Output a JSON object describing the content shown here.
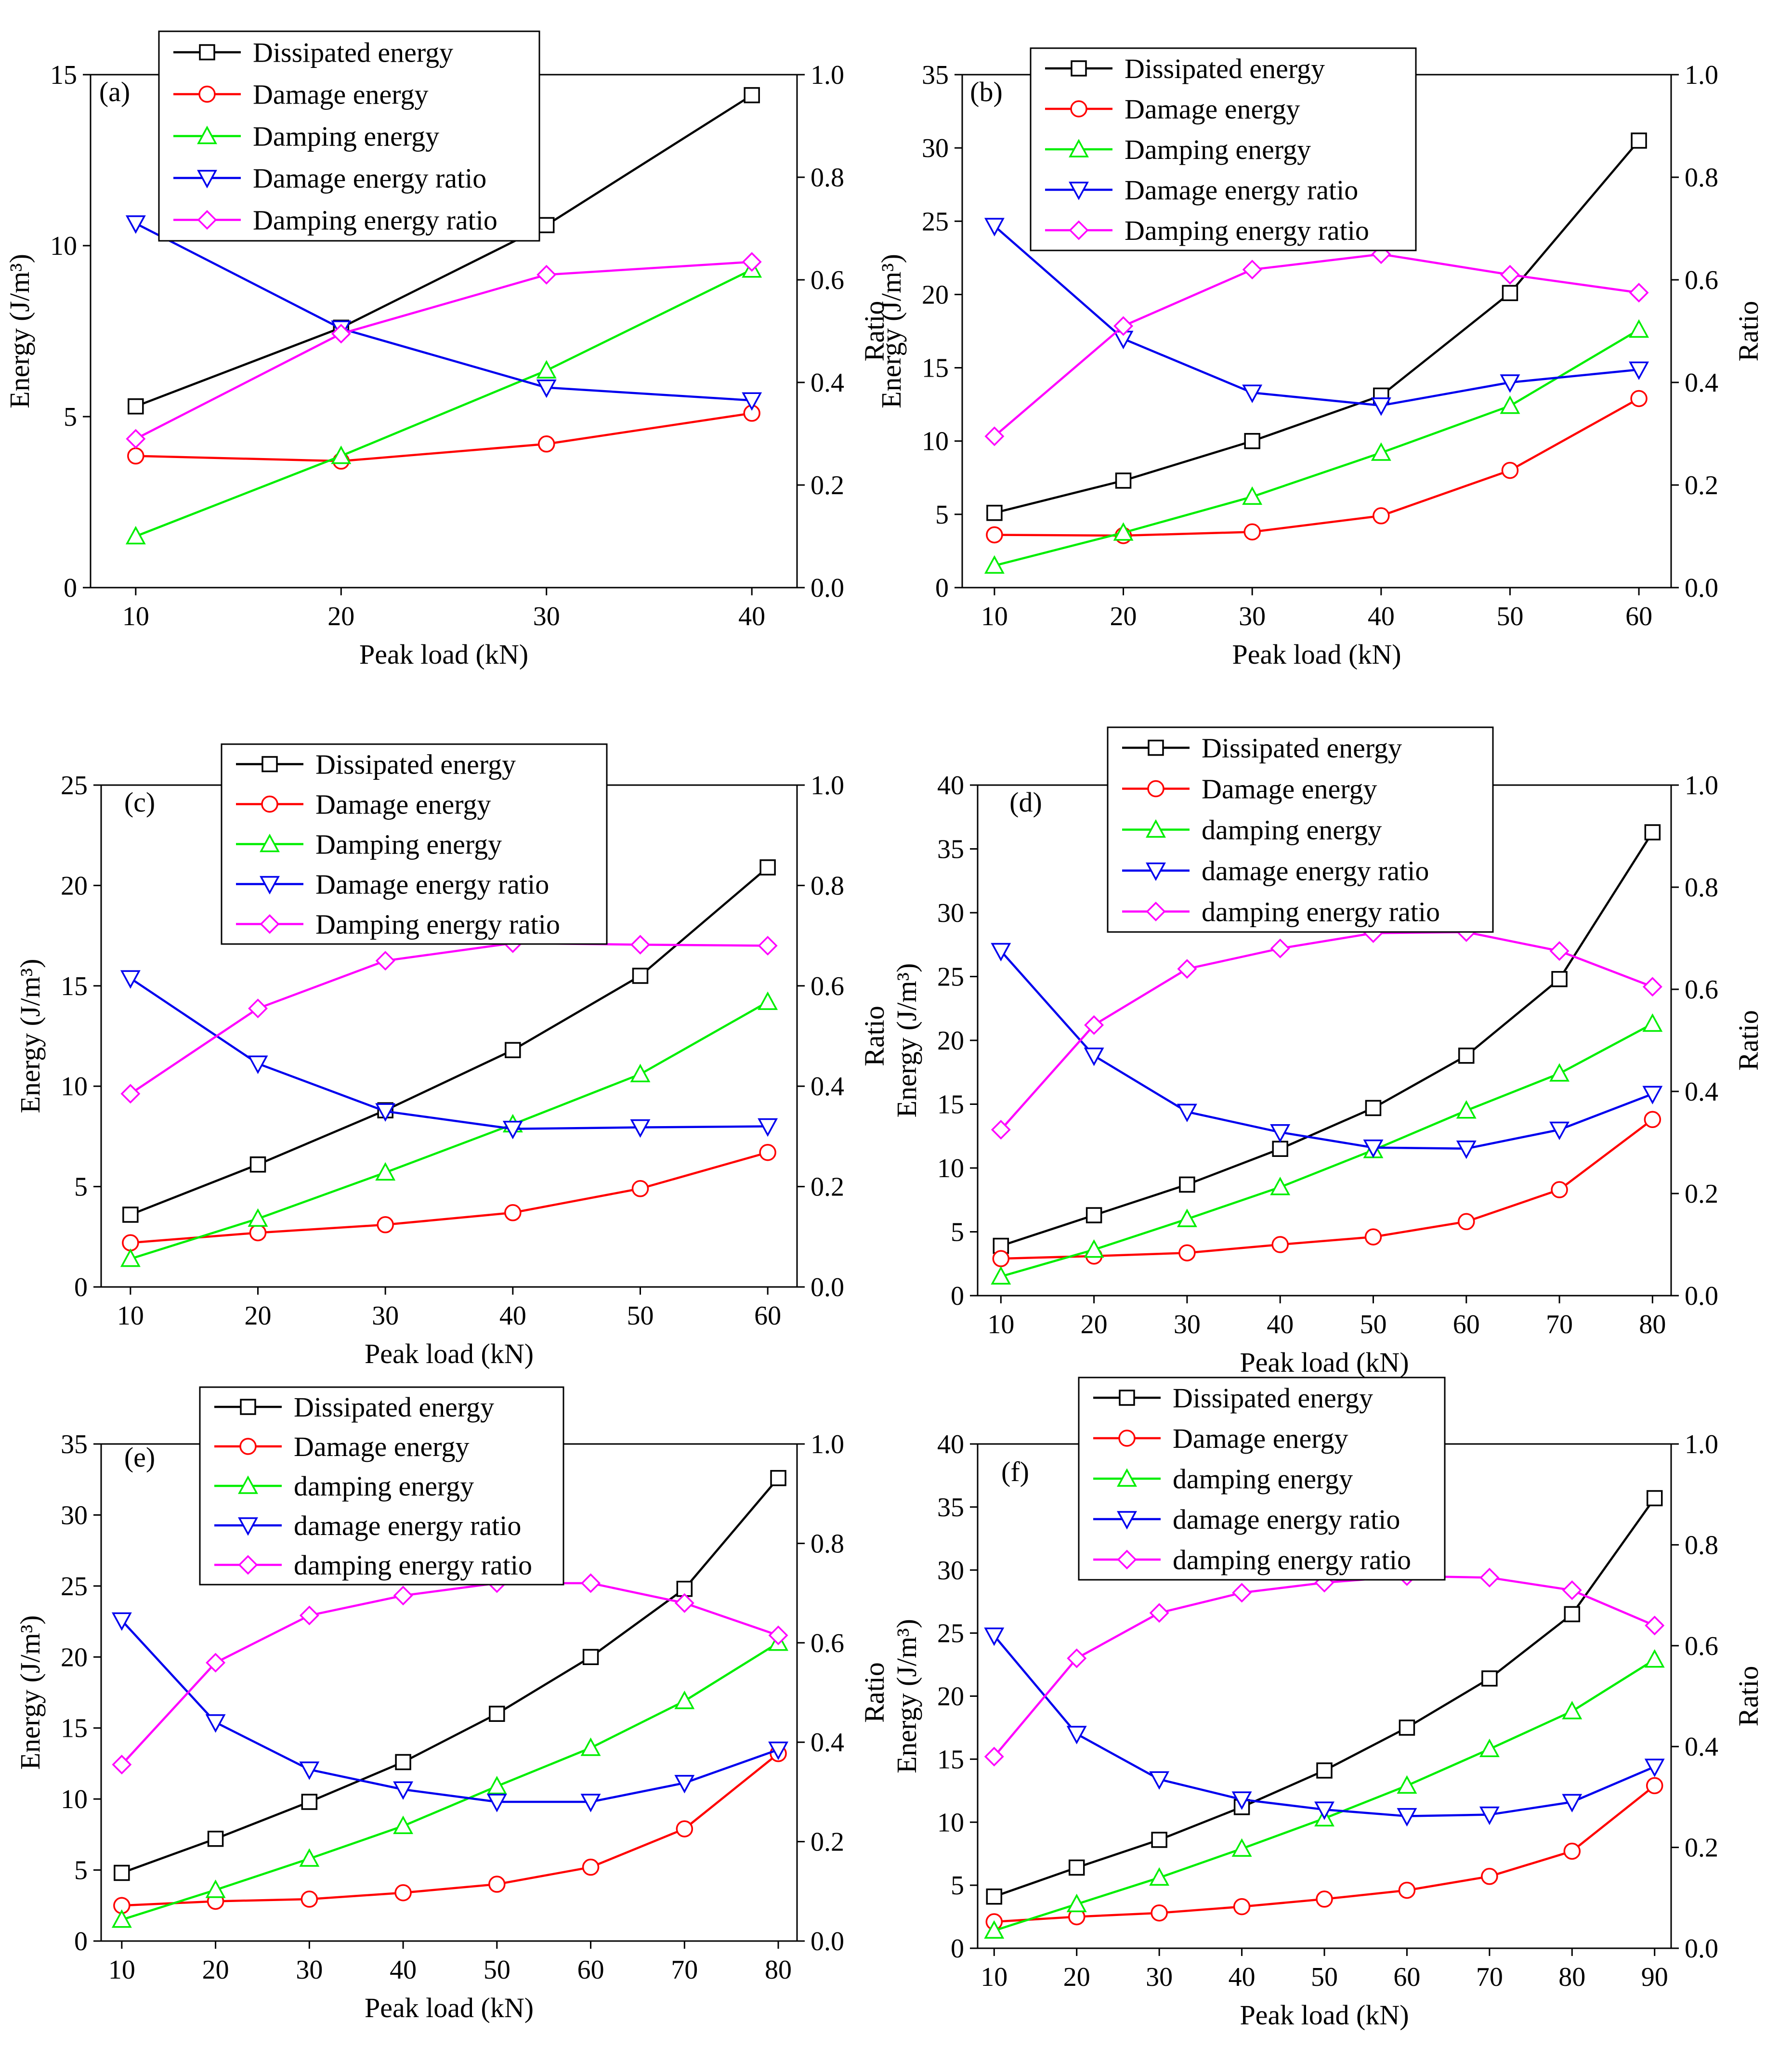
{
  "figure": {
    "description_label": "Six-panel dual-axis line chart figure"
  },
  "colors": {
    "dissipated": "#000000",
    "damage": "#ff0000",
    "damping": "#00ee00",
    "damage_ratio": "#0000ee",
    "damping_ratio": "#ff00ff"
  },
  "chart_data": [
    {
      "type": "line",
      "panel_label": "(a)",
      "xlabel": "Peak load (kN)",
      "ylabel": "Energy (J/m³)",
      "y2label": "Ratio",
      "x": [
        10,
        20,
        30,
        40
      ],
      "xticks": [
        10,
        20,
        30,
        40
      ],
      "xlim": [
        7.8,
        42.2
      ],
      "ylim": [
        0,
        15
      ],
      "yticks": [
        0,
        5,
        10,
        15
      ],
      "y2lim": [
        0,
        1.0
      ],
      "y2ticks": [
        "0.0",
        "0.2",
        "0.4",
        "0.6",
        "0.8",
        "1.0"
      ],
      "legend_position": "top-center",
      "series": [
        {
          "name": "Dissipated energy",
          "axis": "left",
          "marker": "square",
          "color_key": "dissipated",
          "values": [
            5.3,
            7.6,
            10.6,
            14.4
          ]
        },
        {
          "name": "Damage energy",
          "axis": "left",
          "marker": "circle",
          "color_key": "damage",
          "values": [
            3.85,
            3.7,
            4.2,
            5.1
          ]
        },
        {
          "name": "Damping energy",
          "axis": "left",
          "marker": "triangle-up",
          "color_key": "damping",
          "values": [
            1.5,
            3.85,
            6.35,
            9.3
          ]
        },
        {
          "name": "Damage energy ratio",
          "axis": "right",
          "marker": "triangle-down",
          "color_key": "damage_ratio",
          "values": [
            0.71,
            0.505,
            0.39,
            0.365
          ]
        },
        {
          "name": "Damping energy ratio",
          "axis": "right",
          "marker": "diamond",
          "color_key": "damping_ratio",
          "values": [
            0.29,
            0.495,
            0.61,
            0.635
          ]
        }
      ]
    },
    {
      "type": "line",
      "panel_label": "(b)",
      "xlabel": "Peak load (kN)",
      "ylabel": "Energy (J/m³)",
      "y2label": "Ratio",
      "x": [
        10,
        20,
        30,
        40,
        50,
        60
      ],
      "xticks": [
        10,
        20,
        30,
        40,
        50,
        60
      ],
      "xlim": [
        7.5,
        62.5
      ],
      "ylim": [
        0,
        35
      ],
      "yticks": [
        0,
        5,
        10,
        15,
        20,
        25,
        30,
        35
      ],
      "y2lim": [
        0,
        1.0
      ],
      "y2ticks": [
        "0.0",
        "0.2",
        "0.4",
        "0.6",
        "0.8",
        "1.0"
      ],
      "legend_position": "top-center",
      "series": [
        {
          "name": "Dissipated energy",
          "axis": "left",
          "marker": "square",
          "color_key": "dissipated",
          "values": [
            5.1,
            7.3,
            10.0,
            13.1,
            20.1,
            30.5
          ]
        },
        {
          "name": "Damage energy",
          "axis": "left",
          "marker": "circle",
          "color_key": "damage",
          "values": [
            3.6,
            3.55,
            3.8,
            4.9,
            8.0,
            12.9
          ]
        },
        {
          "name": "Damping energy",
          "axis": "left",
          "marker": "triangle-up",
          "color_key": "damping",
          "values": [
            1.5,
            3.75,
            6.2,
            9.2,
            12.4,
            17.6
          ]
        },
        {
          "name": "Damage energy ratio",
          "axis": "right",
          "marker": "triangle-down",
          "color_key": "damage_ratio",
          "values": [
            0.705,
            0.485,
            0.38,
            0.355,
            0.4,
            0.425
          ]
        },
        {
          "name": "Damping energy ratio",
          "axis": "right",
          "marker": "diamond",
          "color_key": "damping_ratio",
          "values": [
            0.295,
            0.51,
            0.62,
            0.65,
            0.61,
            0.575
          ]
        }
      ]
    },
    {
      "type": "line",
      "panel_label": "(c)",
      "xlabel": "Peak load (kN)",
      "ylabel": "Energy (J/m³)",
      "y2label": "Ratio",
      "x": [
        10,
        20,
        30,
        40,
        50,
        60
      ],
      "xticks": [
        10,
        20,
        30,
        40,
        50,
        60
      ],
      "xlim": [
        7.7,
        62.3
      ],
      "ylim": [
        0,
        25
      ],
      "yticks": [
        0,
        5,
        10,
        15,
        20,
        25
      ],
      "y2lim": [
        0,
        1.0
      ],
      "y2ticks": [
        "0.0",
        "0.2",
        "0.4",
        "0.6",
        "0.8",
        "1.0"
      ],
      "legend_position": "top-center",
      "series": [
        {
          "name": "Dissipated energy",
          "axis": "left",
          "marker": "square",
          "color_key": "dissipated",
          "values": [
            3.6,
            6.1,
            8.8,
            11.8,
            15.5,
            20.9
          ]
        },
        {
          "name": "Damage energy",
          "axis": "left",
          "marker": "circle",
          "color_key": "damage",
          "values": [
            2.2,
            2.7,
            3.1,
            3.7,
            4.9,
            6.7
          ]
        },
        {
          "name": "Damping energy",
          "axis": "left",
          "marker": "triangle-up",
          "color_key": "damping",
          "values": [
            1.4,
            3.4,
            5.7,
            8.1,
            10.6,
            14.2
          ]
        },
        {
          "name": "Damage energy ratio",
          "axis": "right",
          "marker": "triangle-down",
          "color_key": "damage_ratio",
          "values": [
            0.615,
            0.445,
            0.35,
            0.315,
            0.318,
            0.32
          ]
        },
        {
          "name": "Damping energy ratio",
          "axis": "right",
          "marker": "diamond",
          "color_key": "damping_ratio",
          "values": [
            0.385,
            0.555,
            0.65,
            0.685,
            0.682,
            0.68
          ]
        }
      ]
    },
    {
      "type": "line",
      "panel_label": "(d)",
      "xlabel": "Peak load (kN)",
      "ylabel": "Energy (J/m³)",
      "y2label": "Ratio",
      "x": [
        10,
        20,
        30,
        40,
        50,
        60,
        70,
        80
      ],
      "xticks": [
        10,
        20,
        30,
        40,
        50,
        60,
        70,
        80
      ],
      "xlim": [
        7.5,
        82.0
      ],
      "ylim": [
        0,
        40
      ],
      "yticks": [
        0,
        5,
        10,
        15,
        20,
        25,
        30,
        35,
        40
      ],
      "y2lim": [
        0,
        1.0
      ],
      "y2ticks": [
        "0.0",
        "0.2",
        "0.4",
        "0.6",
        "0.8",
        "1.0"
      ],
      "legend_position": "top-center",
      "series": [
        {
          "name": "Dissipated energy",
          "axis": "left",
          "marker": "square",
          "color_key": "dissipated",
          "values": [
            3.9,
            6.3,
            8.7,
            11.5,
            14.7,
            18.8,
            24.8,
            36.3
          ]
        },
        {
          "name": "Damage energy",
          "axis": "left",
          "marker": "circle",
          "color_key": "damage",
          "values": [
            2.9,
            3.1,
            3.35,
            4.0,
            4.6,
            5.8,
            8.3,
            13.8
          ]
        },
        {
          "name": "damping energy",
          "axis": "left",
          "marker": "triangle-up",
          "color_key": "damping",
          "values": [
            1.5,
            3.6,
            6.0,
            8.5,
            11.4,
            14.5,
            17.4,
            21.3
          ]
        },
        {
          "name": "damage energy ratio",
          "axis": "right",
          "marker": "triangle-down",
          "color_key": "damage_ratio",
          "values": [
            0.675,
            0.47,
            0.36,
            0.32,
            0.29,
            0.288,
            0.325,
            0.395
          ]
        },
        {
          "name": "damping energy ratio",
          "axis": "right",
          "marker": "diamond",
          "color_key": "damping_ratio",
          "values": [
            0.325,
            0.53,
            0.64,
            0.68,
            0.71,
            0.712,
            0.675,
            0.605
          ]
        }
      ]
    },
    {
      "type": "line",
      "panel_label": "(e)",
      "xlabel": "Peak load (kN)",
      "ylabel": "Energy (J/m³)",
      "y2label": "Ratio",
      "x": [
        10,
        20,
        30,
        40,
        50,
        60,
        70,
        80
      ],
      "xticks": [
        10,
        20,
        30,
        40,
        50,
        60,
        70,
        80
      ],
      "xlim": [
        7.8,
        82.0
      ],
      "ylim": [
        0,
        35
      ],
      "yticks": [
        0,
        5,
        10,
        15,
        20,
        25,
        30,
        35
      ],
      "y2lim": [
        0,
        1.0
      ],
      "y2ticks": [
        "0.0",
        "0.2",
        "0.4",
        "0.6",
        "0.8",
        "1.0"
      ],
      "legend_position": "top-center",
      "series": [
        {
          "name": "Dissipated energy",
          "axis": "left",
          "marker": "square",
          "color_key": "dissipated",
          "values": [
            4.8,
            7.2,
            9.8,
            12.6,
            16.0,
            20.0,
            24.8,
            32.6
          ]
        },
        {
          "name": "Damage energy",
          "axis": "left",
          "marker": "circle",
          "color_key": "damage",
          "values": [
            2.5,
            2.8,
            2.95,
            3.4,
            4.0,
            5.2,
            7.9,
            13.2
          ]
        },
        {
          "name": "damping energy",
          "axis": "left",
          "marker": "triangle-up",
          "color_key": "damping",
          "values": [
            1.5,
            3.6,
            5.8,
            8.1,
            10.9,
            13.6,
            16.9,
            21.0
          ]
        },
        {
          "name": "damage energy ratio",
          "axis": "right",
          "marker": "triangle-down",
          "color_key": "damage_ratio",
          "values": [
            0.645,
            0.44,
            0.345,
            0.305,
            0.28,
            0.28,
            0.318,
            0.385
          ]
        },
        {
          "name": "damping energy ratio",
          "axis": "right",
          "marker": "diamond",
          "color_key": "damping_ratio",
          "values": [
            0.355,
            0.56,
            0.655,
            0.695,
            0.72,
            0.72,
            0.68,
            0.615
          ]
        }
      ]
    },
    {
      "type": "line",
      "panel_label": "(f)",
      "xlabel": "Peak load (kN)",
      "ylabel": "Energy (J/m³)",
      "y2label": "Ratio",
      "x": [
        10,
        20,
        30,
        40,
        50,
        60,
        70,
        80,
        90
      ],
      "xticks": [
        10,
        20,
        30,
        40,
        50,
        60,
        70,
        80,
        90
      ],
      "xlim": [
        8.0,
        92.0
      ],
      "ylim": [
        0,
        40
      ],
      "yticks": [
        0,
        5,
        10,
        15,
        20,
        25,
        30,
        35,
        40
      ],
      "y2lim": [
        0,
        1.0
      ],
      "y2ticks": [
        "0.0",
        "0.2",
        "0.4",
        "0.6",
        "0.8",
        "1.0"
      ],
      "legend_position": "top-center",
      "series": [
        {
          "name": "Dissipated energy",
          "axis": "left",
          "marker": "square",
          "color_key": "dissipated",
          "values": [
            4.1,
            6.4,
            8.6,
            11.2,
            14.1,
            17.5,
            21.4,
            26.5,
            35.7
          ]
        },
        {
          "name": "Damage energy",
          "axis": "left",
          "marker": "circle",
          "color_key": "damage",
          "values": [
            2.1,
            2.5,
            2.8,
            3.3,
            3.9,
            4.6,
            5.7,
            7.7,
            12.9
          ]
        },
        {
          "name": "damping energy",
          "axis": "left",
          "marker": "triangle-up",
          "color_key": "damping",
          "values": [
            1.4,
            3.5,
            5.6,
            7.9,
            10.3,
            12.9,
            15.8,
            18.8,
            22.9
          ]
        },
        {
          "name": "damage energy ratio",
          "axis": "right",
          "marker": "triangle-down",
          "color_key": "damage_ratio",
          "values": [
            0.62,
            0.425,
            0.335,
            0.295,
            0.275,
            0.262,
            0.265,
            0.29,
            0.36
          ]
        },
        {
          "name": "damping energy ratio",
          "axis": "right",
          "marker": "diamond",
          "color_key": "damping_ratio",
          "values": [
            0.38,
            0.575,
            0.665,
            0.705,
            0.725,
            0.738,
            0.735,
            0.71,
            0.64
          ]
        }
      ]
    }
  ]
}
